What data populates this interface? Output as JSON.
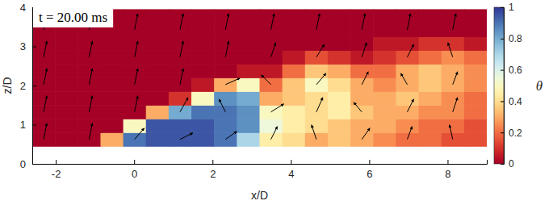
{
  "chart_data": {
    "type": "heatmap",
    "annotation": "t = 20.00 ms",
    "x_label": "x/D",
    "y_label": "z/D",
    "xlim": [
      -2.6,
      9.0
    ],
    "ylim": [
      0,
      4
    ],
    "xticks": [
      -2,
      0,
      2,
      4,
      6,
      8
    ],
    "yticks": [
      0,
      1,
      2,
      3,
      4
    ],
    "x_edges": [
      -2.6,
      -2.02,
      -1.44,
      -0.86,
      -0.28,
      0.3,
      0.88,
      1.46,
      2.04,
      2.62,
      3.2,
      3.78,
      4.36,
      4.94,
      5.52,
      6.1,
      6.68,
      7.26,
      7.84,
      8.42,
      9.0
    ],
    "z_edges": [
      0.45,
      0.8,
      1.15,
      1.5,
      1.85,
      2.2,
      2.55,
      2.9,
      3.25,
      3.6,
      3.95
    ],
    "theta": [
      [
        0,
        0,
        0,
        0.3,
        0.9,
        0.95,
        0.95,
        0.95,
        0.9,
        0.7,
        0.45,
        0.4,
        0.3,
        0.35,
        0.3,
        0.25,
        0.2,
        0.2,
        0.15,
        0.15
      ],
      [
        0,
        0,
        0,
        0,
        0.5,
        0.95,
        0.95,
        0.95,
        0.9,
        0.85,
        0.55,
        0.45,
        0.4,
        0.35,
        0.3,
        0.3,
        0.25,
        0.2,
        0.2,
        0.15
      ],
      [
        0,
        0,
        0,
        0,
        0,
        0.3,
        0.8,
        0.9,
        0.9,
        0.85,
        0.5,
        0.45,
        0.4,
        0.45,
        0.35,
        0.3,
        0.3,
        0.25,
        0.25,
        0.2
      ],
      [
        0,
        0,
        0,
        0,
        0,
        0,
        0.1,
        0.5,
        0.85,
        0.8,
        0.3,
        0.35,
        0.4,
        0.45,
        0.3,
        0.3,
        0.35,
        0.3,
        0.25,
        0.2
      ],
      [
        0,
        0,
        0,
        0,
        0,
        0,
        0,
        0.05,
        0.3,
        0.5,
        0.2,
        0.35,
        0.5,
        0.4,
        0.3,
        0.25,
        0.3,
        0.35,
        0.3,
        0.25
      ],
      [
        0,
        0,
        0,
        0,
        0,
        0,
        0,
        0,
        0,
        0.05,
        0.05,
        0.2,
        0.35,
        0.3,
        0.2,
        0.2,
        0.3,
        0.35,
        0.3,
        0.25
      ],
      [
        0,
        0,
        0,
        0,
        0,
        0,
        0,
        0,
        0,
        0,
        0,
        0.05,
        0.15,
        0.1,
        0.05,
        0.1,
        0.15,
        0.2,
        0.25,
        0.2
      ],
      [
        0,
        0,
        0,
        0,
        0,
        0,
        0,
        0,
        0,
        0,
        0,
        0,
        0,
        0,
        0,
        0.05,
        0.05,
        0.1,
        0.1,
        0.05
      ],
      [
        0,
        0,
        0,
        0,
        0,
        0,
        0,
        0,
        0,
        0,
        0,
        0,
        0,
        0,
        0,
        0,
        0,
        0,
        0,
        0
      ],
      [
        0,
        0,
        0,
        0,
        0,
        0,
        0,
        0,
        0,
        0,
        0,
        0,
        0,
        0,
        0,
        0,
        0,
        0,
        0,
        0
      ]
    ],
    "vectors": {
      "x": [
        -2.31,
        -1.15,
        0.01,
        1.17,
        2.33,
        3.49,
        4.65,
        5.81,
        6.97,
        8.13
      ],
      "z": [
        0.625,
        1.325,
        2.025,
        2.725,
        3.425
      ],
      "u": [
        [
          0.2,
          0.2,
          0.6,
          0.8,
          0.7,
          0.4,
          -0.3,
          0.5,
          0.3,
          -0.2
        ],
        [
          0.2,
          0.2,
          0.2,
          0.5,
          -0.4,
          0.8,
          0.4,
          -0.5,
          0.4,
          0.3
        ],
        [
          0.2,
          0.2,
          0.2,
          0.2,
          0.9,
          -0.6,
          0.6,
          0.4,
          -0.4,
          0.3
        ],
        [
          0.2,
          0.2,
          0.2,
          0.2,
          0.2,
          0.3,
          0.5,
          0.3,
          0.4,
          -0.3
        ],
        [
          0.2,
          0.2,
          0.2,
          0.2,
          0.2,
          0.2,
          0.2,
          0.2,
          0.2,
          0.2
        ]
      ],
      "w": [
        [
          1,
          1,
          0.7,
          0.4,
          0.5,
          0.8,
          0.9,
          0.7,
          0.8,
          0.9
        ],
        [
          1,
          1,
          1,
          0.9,
          0.8,
          0.5,
          0.9,
          0.6,
          0.8,
          0.9
        ],
        [
          1,
          1,
          1,
          1,
          0.4,
          0.6,
          0.7,
          0.8,
          0.7,
          0.8
        ],
        [
          1,
          1,
          1,
          1,
          1,
          0.9,
          0.8,
          0.9,
          0.8,
          0.9
        ],
        [
          1,
          1,
          1,
          1,
          1,
          1,
          1,
          1,
          1,
          1
        ]
      ]
    },
    "colorbar": {
      "label": "θ",
      "lim": [
        0,
        1
      ],
      "ticks": [
        0,
        0.2,
        0.4,
        0.6,
        0.8,
        1
      ]
    }
  }
}
